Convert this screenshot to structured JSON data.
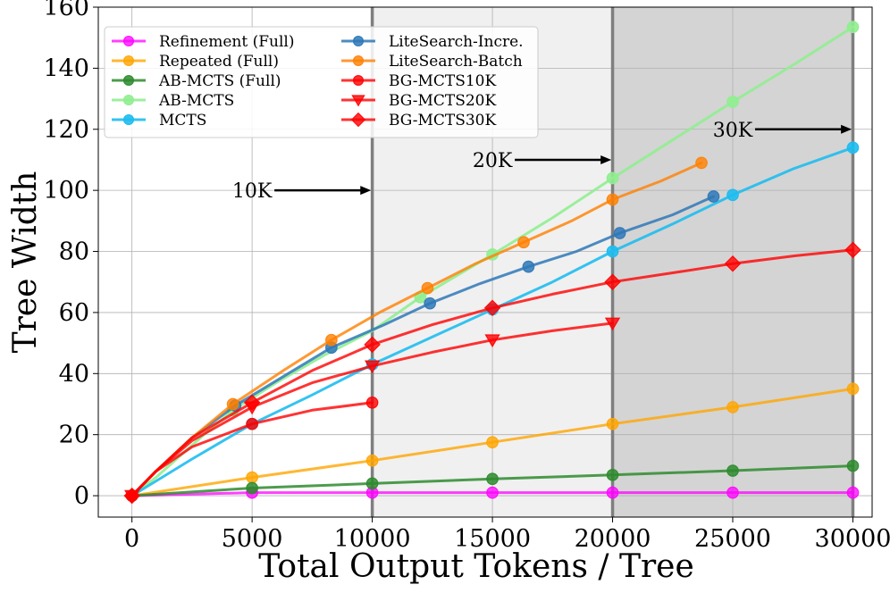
{
  "chart_data": {
    "type": "line",
    "xlabel": "Total Output Tokens / Tree",
    "ylabel": "Tree Width",
    "xlim": [
      -1400,
      30800
    ],
    "ylim": [
      -7,
      160
    ],
    "xticks": [
      0,
      5000,
      10000,
      15000,
      20000,
      25000,
      30000
    ],
    "yticks": [
      0,
      20,
      40,
      60,
      80,
      100,
      120,
      140,
      160
    ],
    "grid": true,
    "legend_position": "upper-left",
    "budget_lines": [
      10000,
      20000,
      30000
    ],
    "shaded_regions": [
      {
        "from": 10000,
        "to": 20000,
        "color": "#f0f0f0"
      },
      {
        "from": 20000,
        "to": 30000,
        "color": "#d4d4d4"
      }
    ],
    "annotations": [
      {
        "text": "10K",
        "text_x": 5000,
        "text_y": 100,
        "arrow_to_x": 9950,
        "arrow_to_y": 100
      },
      {
        "text": "20K",
        "text_x": 15000,
        "text_y": 110,
        "arrow_to_x": 19950,
        "arrow_to_y": 110
      },
      {
        "text": "30K",
        "text_x": 25000,
        "text_y": 120,
        "arrow_to_x": 29950,
        "arrow_to_y": 120
      }
    ],
    "series": [
      {
        "name": "Refinement (Full)",
        "color": "#ff00ff",
        "marker": "o",
        "alpha": 0.75,
        "x": [
          0,
          5000,
          10000,
          15000,
          20000,
          25000,
          30000
        ],
        "y": [
          0,
          1,
          1,
          1,
          1,
          1,
          1
        ],
        "markers": [
          0,
          1,
          2,
          3,
          4,
          5,
          6
        ]
      },
      {
        "name": "Repeated (Full)",
        "color": "#ffa500",
        "marker": "o",
        "alpha": 0.8,
        "x": [
          0,
          5000,
          10000,
          15000,
          20000,
          25000,
          30000
        ],
        "y": [
          0,
          6,
          11.5,
          17.5,
          23.5,
          29,
          35
        ],
        "markers": [
          0,
          1,
          2,
          3,
          4,
          5,
          6
        ]
      },
      {
        "name": "AB-MCTS (Full)",
        "color": "#2e8b2e",
        "marker": "o",
        "alpha": 0.85,
        "x": [
          0,
          5000,
          10000,
          15000,
          20000,
          25000,
          30000
        ],
        "y": [
          0,
          2.5,
          4,
          5.5,
          6.8,
          8.2,
          9.8
        ],
        "markers": [
          0,
          1,
          2,
          3,
          4,
          5,
          6
        ]
      },
      {
        "name": "AB-MCTS",
        "color": "#90ee90",
        "marker": "o",
        "alpha": 0.9,
        "x": [
          0,
          1000,
          2000,
          3000,
          4200,
          6000,
          8000,
          10000,
          12000,
          15000,
          17500,
          20000,
          22500,
          25000,
          27500,
          30000
        ],
        "y": [
          0,
          6,
          13,
          20,
          28,
          37,
          46,
          54,
          65,
          79,
          91,
          104,
          116.5,
          129,
          141,
          153.5
        ],
        "markers": [
          0,
          4,
          8,
          9,
          11,
          13,
          15
        ]
      },
      {
        "name": "MCTS",
        "color": "#1ebcf0",
        "marker": "o",
        "alpha": 0.9,
        "x": [
          0,
          2500,
          5000,
          7500,
          10000,
          12500,
          15000,
          17500,
          20000,
          22500,
          25000,
          27500,
          30000
        ],
        "y": [
          0,
          12,
          23.5,
          33,
          43,
          52,
          61,
          70,
          80,
          89,
          98.5,
          107,
          114
        ],
        "markers": [
          0,
          2,
          4,
          6,
          8,
          10,
          12
        ]
      },
      {
        "name": "LiteSearch-Incre.",
        "color": "#2e78b7",
        "marker": "o",
        "alpha": 0.85,
        "x": [
          0,
          1000,
          2500,
          4300,
          6500,
          8300,
          10500,
          12400,
          14500,
          16500,
          18500,
          20300,
          22500,
          24200
        ],
        "y": [
          0,
          8,
          19,
          29.5,
          40,
          48.5,
          56,
          63,
          69.5,
          75,
          80,
          86,
          92,
          98
        ],
        "markers": [
          0,
          3,
          5,
          7,
          9,
          11,
          13
        ]
      },
      {
        "name": "LiteSearch-Batch",
        "color": "#ff8000",
        "marker": "o",
        "alpha": 0.8,
        "x": [
          0,
          1000,
          2500,
          4200,
          6300,
          8300,
          10300,
          12300,
          14300,
          16300,
          18300,
          20000,
          22000,
          23700
        ],
        "y": [
          0,
          8,
          19,
          30,
          41,
          51,
          60,
          68,
          76,
          83,
          90,
          97,
          103,
          109
        ],
        "markers": [
          0,
          3,
          5,
          7,
          9,
          11,
          13
        ]
      },
      {
        "name": "BG-MCTS10K",
        "color": "#ff0000",
        "marker": "o",
        "alpha": 0.8,
        "x": [
          0,
          1000,
          2500,
          5000,
          7500,
          10000
        ],
        "y": [
          0,
          8,
          16,
          23.5,
          28,
          30.5
        ],
        "markers": [
          0,
          3,
          5
        ]
      },
      {
        "name": "BG-MCTS20K",
        "color": "#ff0000",
        "marker": "v",
        "alpha": 0.8,
        "x": [
          0,
          1000,
          2500,
          5000,
          7500,
          10000,
          12500,
          15000,
          17500,
          20000
        ],
        "y": [
          0,
          8,
          18,
          29,
          37,
          42.5,
          47,
          51,
          54,
          56.5
        ],
        "markers": [
          0,
          3,
          5,
          7,
          9
        ]
      },
      {
        "name": "BG-MCTS30K",
        "color": "#ff0000",
        "marker": "D",
        "alpha": 0.8,
        "x": [
          0,
          1000,
          2500,
          5000,
          7500,
          10000,
          12500,
          15000,
          17500,
          20000,
          22500,
          25000,
          27500,
          30000
        ],
        "y": [
          0,
          8,
          19,
          30.5,
          41,
          49.5,
          56,
          61.5,
          66,
          70,
          73,
          76,
          78.5,
          80.5
        ],
        "markers": [
          0,
          3,
          5,
          7,
          9,
          11,
          13
        ]
      }
    ]
  }
}
